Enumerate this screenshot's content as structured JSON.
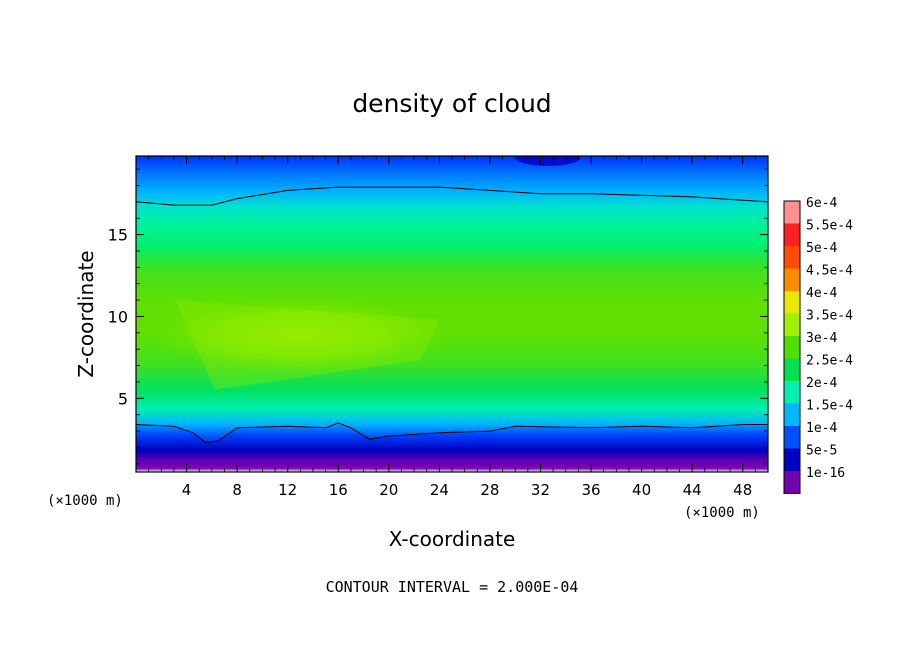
{
  "chart_data": {
    "type": "heatmap",
    "title": "density of cloud",
    "xlabel": "X-coordinate",
    "ylabel": "Z-coordinate",
    "x_unit": "(×1000 m)",
    "x_unit_right": "(×1000 m)",
    "xlim": [
      0,
      50
    ],
    "ylim": [
      0.5,
      19.8
    ],
    "x_ticks": [
      4,
      8,
      12,
      16,
      20,
      24,
      28,
      32,
      36,
      40,
      44,
      48
    ],
    "y_ticks": [
      5,
      10,
      15
    ],
    "footer": "CONTOUR INTERVAL = 2.000E-04",
    "colorbar": {
      "levels": [
        {
          "label": "6e-4",
          "value": 0.0006,
          "color": "#ff9090"
        },
        {
          "label": "5.5e-4",
          "value": 0.00055,
          "color": "#ff2020"
        },
        {
          "label": "5e-4",
          "value": 0.0005,
          "color": "#ff4c00"
        },
        {
          "label": "4.5e-4",
          "value": 0.00045,
          "color": "#ff8c00"
        },
        {
          "label": "4e-4",
          "value": 0.0004,
          "color": "#e8e800"
        },
        {
          "label": "3.5e-4",
          "value": 0.00035,
          "color": "#a0f000"
        },
        {
          "label": "3e-4",
          "value": 0.0003,
          "color": "#50e000"
        },
        {
          "label": "2.5e-4",
          "value": 0.00025,
          "color": "#00e050"
        },
        {
          "label": "2e-4",
          "value": 0.0002,
          "color": "#00f0b0"
        },
        {
          "label": "1.5e-4",
          "value": 0.00015,
          "color": "#00b8ff"
        },
        {
          "label": "1e-4",
          "value": 0.0001,
          "color": "#0050ff"
        },
        {
          "label": "5e-5",
          "value": 5e-05,
          "color": "#0000c0"
        },
        {
          "label": "1e-16",
          "value": 1e-16,
          "color": "#7000b0"
        }
      ]
    },
    "contour_line_value": 0.0002,
    "contour_line_z_profile": [
      [
        0,
        17.0
      ],
      [
        3,
        16.8
      ],
      [
        6,
        16.8
      ],
      [
        8,
        17.2
      ],
      [
        12,
        17.7
      ],
      [
        16,
        17.9
      ],
      [
        20,
        17.9
      ],
      [
        24,
        17.9
      ],
      [
        28,
        17.7
      ],
      [
        32,
        17.5
      ],
      [
        36,
        17.5
      ],
      [
        40,
        17.4
      ],
      [
        44,
        17.3
      ],
      [
        48,
        17.1
      ],
      [
        50,
        17.0
      ]
    ],
    "lower_contour_z_profile": [
      [
        0,
        3.4
      ],
      [
        3,
        3.3
      ],
      [
        4.5,
        2.9
      ],
      [
        5.5,
        2.3
      ],
      [
        6.5,
        2.4
      ],
      [
        8,
        3.2
      ],
      [
        12,
        3.3
      ],
      [
        15,
        3.2
      ],
      [
        16,
        3.5
      ],
      [
        17,
        3.2
      ],
      [
        18.5,
        2.5
      ],
      [
        20,
        2.7
      ],
      [
        24,
        2.9
      ],
      [
        28,
        3.0
      ],
      [
        30,
        3.3
      ],
      [
        36,
        3.2
      ],
      [
        40,
        3.3
      ],
      [
        44,
        3.2
      ],
      [
        48,
        3.4
      ],
      [
        50,
        3.4
      ]
    ]
  }
}
